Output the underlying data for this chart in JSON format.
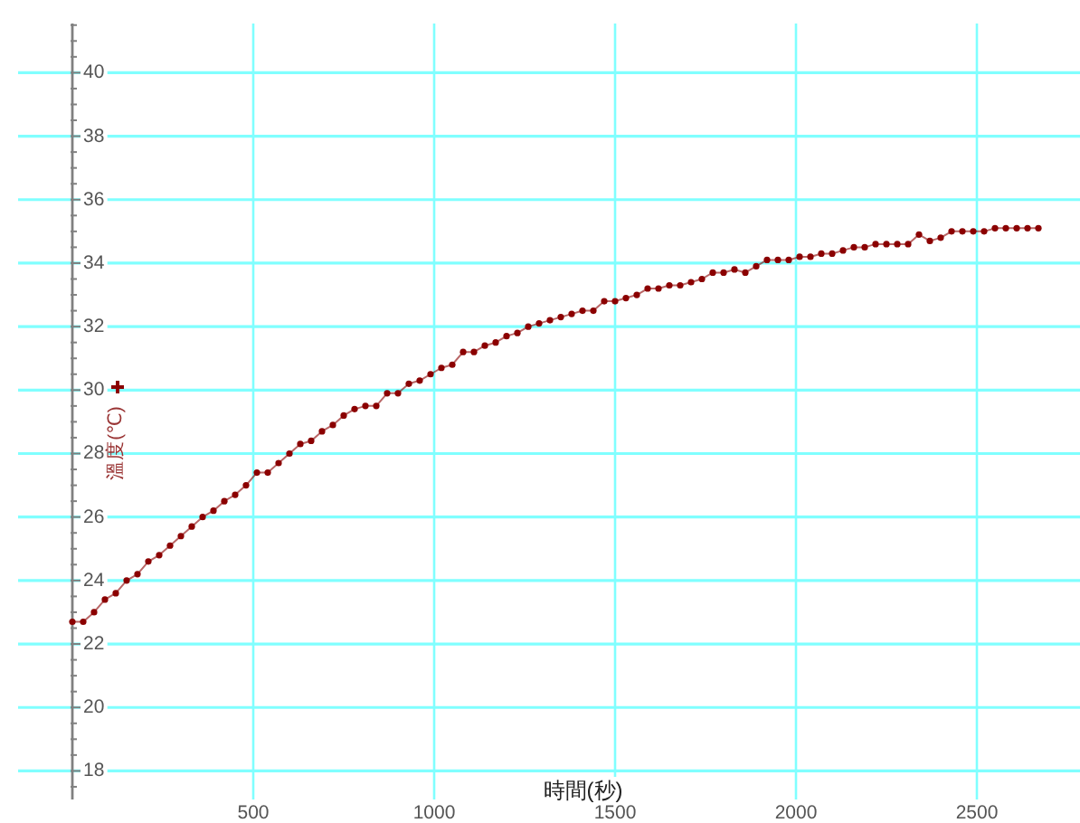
{
  "chart_data": {
    "type": "line",
    "xlabel": "時間(秒)",
    "ylabel": "溫度(℃)",
    "x": [
      0,
      30,
      60,
      90,
      120,
      150,
      180,
      210,
      240,
      270,
      300,
      330,
      360,
      390,
      420,
      450,
      480,
      510,
      540,
      570,
      600,
      630,
      660,
      690,
      720,
      750,
      780,
      810,
      840,
      870,
      900,
      930,
      960,
      990,
      1020,
      1050,
      1080,
      1110,
      1140,
      1170,
      1200,
      1230,
      1260,
      1290,
      1320,
      1350,
      1380,
      1410,
      1440,
      1470,
      1500,
      1530,
      1560,
      1590,
      1620,
      1650,
      1680,
      1710,
      1740,
      1770,
      1800,
      1830,
      1860,
      1890,
      1920,
      1950,
      1980,
      2010,
      2040,
      2070,
      2100,
      2130,
      2160,
      2190,
      2220,
      2250,
      2280,
      2310,
      2340,
      2370,
      2400,
      2430,
      2460,
      2490,
      2520,
      2550,
      2580,
      2610,
      2640,
      2670
    ],
    "values": [
      22.7,
      22.7,
      23.0,
      23.4,
      23.6,
      24.0,
      24.2,
      24.6,
      24.8,
      25.1,
      25.4,
      25.7,
      26.0,
      26.2,
      26.5,
      26.7,
      27.0,
      27.4,
      27.4,
      27.7,
      28.0,
      28.3,
      28.4,
      28.7,
      28.9,
      29.2,
      29.4,
      29.5,
      29.5,
      29.9,
      29.9,
      30.2,
      30.3,
      30.5,
      30.7,
      30.8,
      31.2,
      31.2,
      31.4,
      31.5,
      31.7,
      31.8,
      32.0,
      32.1,
      32.2,
      32.3,
      32.4,
      32.5,
      32.5,
      32.8,
      32.8,
      32.9,
      33.0,
      33.2,
      33.2,
      33.3,
      33.3,
      33.4,
      33.5,
      33.7,
      33.7,
      33.8,
      33.7,
      33.9,
      34.1,
      34.1,
      34.1,
      34.2,
      34.2,
      34.3,
      34.3,
      34.4,
      34.5,
      34.5,
      34.6,
      34.6,
      34.6,
      34.6,
      34.9,
      34.7,
      34.8,
      35.0,
      35.0,
      35.0,
      35.0,
      35.1,
      35.1,
      35.1,
      35.1,
      35.1
    ],
    "color": "#8b0000",
    "marker": "circle",
    "line_style": "solid",
    "grid": true,
    "xlim": [
      -150,
      2785
    ],
    "ylim": [
      17.1,
      41.55
    ],
    "xticks": [
      500,
      1000,
      1500,
      2000,
      2500
    ],
    "yticks": [
      {
        "value": 17.5,
        "label": null
      },
      18,
      {
        "value": 18.5,
        "label": null
      },
      {
        "value": 19,
        "label": null
      },
      {
        "value": 19.5,
        "label": null
      },
      20,
      {
        "value": 20.5,
        "label": null
      },
      {
        "value": 21,
        "label": null
      },
      {
        "value": 21.5,
        "label": null
      },
      22,
      {
        "value": 22.5,
        "label": null
      },
      {
        "value": 23,
        "label": null
      },
      {
        "value": 23.5,
        "label": null
      },
      24,
      {
        "value": 24.5,
        "label": null
      },
      {
        "value": 25,
        "label": null
      },
      {
        "value": 25.5,
        "label": null
      },
      26,
      {
        "value": 26.5,
        "label": null
      },
      {
        "value": 27,
        "label": null
      },
      {
        "value": 27.5,
        "label": null
      },
      28,
      {
        "value": 28.5,
        "label": null
      },
      {
        "value": 29,
        "label": null
      },
      {
        "value": 29.5,
        "label": null
      },
      30,
      {
        "value": 30.5,
        "label": null
      },
      {
        "value": 31,
        "label": null
      },
      {
        "value": 31.5,
        "label": null
      },
      32,
      {
        "value": 32.5,
        "label": null
      },
      {
        "value": 33,
        "label": null
      },
      {
        "value": 33.5,
        "label": null
      },
      34,
      {
        "value": 34.5,
        "label": null
      },
      {
        "value": 35,
        "label": null
      },
      {
        "value": 35.5,
        "label": null
      },
      36,
      {
        "value": 36.5,
        "label": null
      },
      {
        "value": 37,
        "label": null
      },
      {
        "value": 37.5,
        "label": null
      },
      38,
      {
        "value": 38.5,
        "label": null
      },
      {
        "value": 39,
        "label": null
      },
      {
        "value": 39.5,
        "label": null
      },
      40,
      {
        "value": 40.5,
        "label": null
      },
      {
        "value": 41,
        "label": null
      },
      {
        "value": 41.5,
        "label": null
      }
    ]
  }
}
